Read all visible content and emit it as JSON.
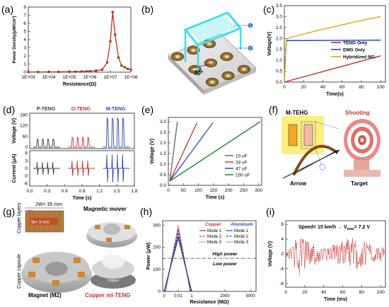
{
  "panels": {
    "a": {
      "label": "(a)"
    },
    "b": {
      "label": "(b)"
    },
    "c": {
      "label": "(c)"
    },
    "d": {
      "label": "(d)"
    },
    "e": {
      "label": "(e)"
    },
    "f": {
      "label": "(f)"
    },
    "g": {
      "label": "(g)"
    },
    "h": {
      "label": "(h)"
    },
    "i": {
      "label": "(i)"
    }
  },
  "chart_data": [
    {
      "id": "a",
      "type": "line",
      "xlabel": "Resistance(Ω)",
      "ylabel": "Power Density(μW/cm²)",
      "x_scale": "log",
      "x_ticklabels": [
        "1E+03",
        "1E+04",
        "1E+05",
        "1E+06",
        "1E+07",
        "1E+08"
      ],
      "y_ticklabels": [
        "0",
        "1",
        "2",
        "3",
        "4",
        "5",
        "6",
        "7",
        "8"
      ],
      "ylim": [
        0,
        8
      ],
      "color": "#b5371f",
      "x": [
        1000,
        3000,
        10000,
        30000,
        100000,
        200000,
        400000,
        700000,
        1000000,
        2000000,
        4000000,
        7000000,
        10000000,
        13000000,
        17000000,
        25000000,
        35000000,
        50000000,
        70000000,
        100000000
      ],
      "y": [
        0.02,
        0.02,
        0.03,
        0.04,
        0.05,
        0.06,
        0.08,
        0.1,
        0.12,
        0.18,
        0.3,
        1.2,
        3.8,
        7.4,
        4.6,
        1.8,
        0.8,
        0.6,
        0.4,
        0.3
      ]
    },
    {
      "id": "c",
      "type": "line",
      "xlabel": "Time(s)",
      "ylabel": "Voltage(V)",
      "x_ticklabels": [
        "0",
        "20",
        "40",
        "60",
        "80",
        "100"
      ],
      "y_ticklabels": [
        "0.0",
        "0.5",
        "1.0",
        "1.5",
        "2.0",
        "2.5",
        "3.0",
        "3.5"
      ],
      "xlim": [
        0,
        105
      ],
      "ylim": [
        0,
        3.5
      ],
      "legend": "center-right",
      "series": [
        {
          "name": "TENG Only",
          "color": "#b73227",
          "x": [
            0,
            100
          ],
          "y": [
            0.0,
            1.2
          ]
        },
        {
          "name": "EMG Only",
          "color": "#2a47c2",
          "x": [
            0,
            1,
            2,
            3,
            100
          ],
          "y": [
            0,
            1.0,
            1.85,
            1.9,
            1.92
          ]
        },
        {
          "name": "Hybridized NG",
          "color": "#d3a91c",
          "x": [
            0,
            1,
            2,
            3,
            20,
            40,
            60,
            80,
            100
          ],
          "y": [
            0,
            1.0,
            1.9,
            2.0,
            2.2,
            2.42,
            2.62,
            2.82,
            3.0
          ]
        }
      ]
    },
    {
      "id": "d",
      "type": "line",
      "xlabel": "Time (s)",
      "ylabel_top": "Voltage (V)",
      "ylabel_bottom": "Current (μA)",
      "x_ticklabels": [
        "0.0",
        "0.3",
        "0.6",
        "0.9",
        "1.2",
        "1.5",
        "1.8"
      ],
      "y_top_ticklabels": [
        "0",
        "60",
        "120",
        "180"
      ],
      "y_bottom_ticklabels": [
        "-6",
        "-3",
        "0",
        "3",
        "6"
      ],
      "series": [
        {
          "name": "P-TENG",
          "color": "#3b3b3b",
          "pulses": 4,
          "voltage_peak": 45,
          "current_amp": 2.5
        },
        {
          "name": "O-TENG",
          "color": "#c0322d",
          "pulses": 4,
          "voltage_peak": 55,
          "current_amp": 3.0
        },
        {
          "name": "M-TENG",
          "color": "#2b49b0",
          "pulses": 4,
          "voltage_peak": 165,
          "current_amp": 5.5
        }
      ]
    },
    {
      "id": "e",
      "type": "line",
      "xlabel": "Time (s)",
      "ylabel": "Voltage (V)",
      "x_ticklabels": [
        "0",
        "50",
        "100",
        "150",
        "200",
        "250",
        "300"
      ],
      "y_ticklabels": [
        "0.0",
        "0.5",
        "1.0",
        "1.5",
        "2.0",
        "2.5",
        "3.0"
      ],
      "xlim": [
        0,
        310
      ],
      "ylim": [
        0,
        3.2
      ],
      "legend": "bottom-right",
      "series": [
        {
          "name": "10 uF",
          "color": "#6e6e6e",
          "x": [
            5,
            30
          ],
          "y": [
            0.2,
            3.0
          ]
        },
        {
          "name": "33 uF",
          "color": "#c4413b",
          "x": [
            5,
            95
          ],
          "y": [
            0.2,
            2.95
          ]
        },
        {
          "name": "47 uF",
          "color": "#3a52c4",
          "x": [
            5,
            148
          ],
          "y": [
            0.2,
            2.95
          ]
        },
        {
          "name": "100 uF",
          "color": "#1f8a3a",
          "x": [
            5,
            305
          ],
          "y": [
            0.2,
            3.0
          ]
        }
      ]
    },
    {
      "id": "h",
      "type": "line",
      "xlabel": "Resistance (MΩ)",
      "ylabel": "Power (μW)",
      "x_ticklabels": [
        "0",
        "0.01",
        "1",
        "2000",
        "5000"
      ],
      "y_ticklabels": [
        "0",
        "100",
        "200",
        "300"
      ],
      "ylim": [
        0,
        320
      ],
      "threshold": 150,
      "annotations": [
        "High power",
        "Low power"
      ],
      "legend_groups": [
        "Copper",
        "Aluminum"
      ],
      "series": [
        {
          "name": "Mode 1",
          "group": "Copper",
          "color": "#c0322d",
          "peak": 250
        },
        {
          "name": "Mode 2",
          "group": "Copper",
          "color": "#c0322d",
          "peak": 280
        },
        {
          "name": "Mode 3",
          "group": "Copper",
          "color": "#c0322d",
          "peak": 300
        },
        {
          "name": "Mode 1",
          "group": "Aluminum",
          "color": "#2b49b0",
          "peak": 240
        },
        {
          "name": "Mode 2",
          "group": "Aluminum",
          "color": "#2b49b0",
          "peak": 265
        },
        {
          "name": "Mode 3",
          "group": "Aluminum",
          "color": "#2b49b0",
          "peak": 285
        }
      ]
    },
    {
      "id": "i",
      "type": "line",
      "xlabel": "Time (ms)",
      "ylabel": "Voltage (V)",
      "x_ticklabels": [
        "0",
        "20",
        "40",
        "60",
        "80",
        "100"
      ],
      "y_ticklabels": [
        "-8",
        "-4",
        "0",
        "4",
        "8"
      ],
      "xlim": [
        0,
        105
      ],
      "ylim": [
        -9,
        9
      ],
      "annotation": "Speed= 15 km/h → V",
      "annotation_sub": "max",
      "annotation_tail": "= 7.2 V",
      "color": "#c0322d"
    }
  ],
  "panel_b": {
    "angle_label": "30°",
    "marker_1": "1",
    "marker_2": "2"
  },
  "panel_f": {
    "left_title": "M-TEHG",
    "right_title": "Shooting",
    "arrow_label": "Arrow",
    "target_label": "Target"
  },
  "panel_g": {
    "width_label": "2W= 35 mm",
    "w_label": "W",
    "inner_label": "W= 3 mm",
    "copper_layers": "Copper layers",
    "copper_capsule": "Copper capsule",
    "magnetic_mover": "Magnetic mover",
    "magnet": "Magnet (M2)",
    "device": "Copper ml-TENG",
    "mini_label": "Copper"
  }
}
